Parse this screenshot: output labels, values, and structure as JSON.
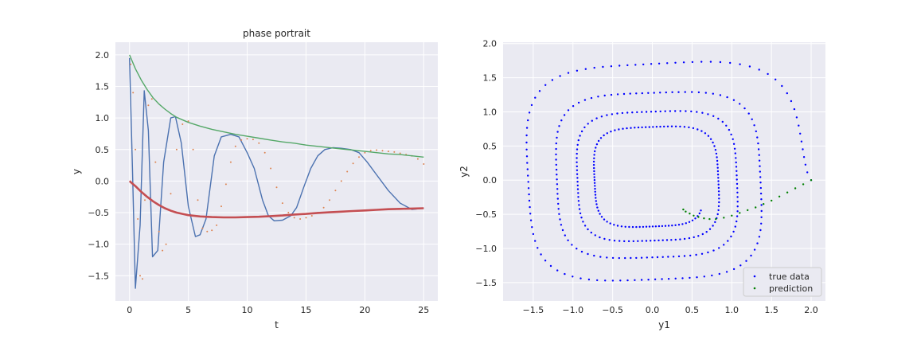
{
  "chart_data": [
    {
      "type": "line",
      "title": "phase portrait",
      "xlabel": "t",
      "ylabel": "y",
      "xlim": [
        -1.2,
        26.2
      ],
      "ylim": [
        -1.9,
        2.2
      ],
      "xticks": [
        0,
        5,
        10,
        15,
        20,
        25
      ],
      "yticks": [
        -1.5,
        -1.0,
        -0.5,
        0.0,
        0.5,
        1.0,
        1.5,
        2.0
      ],
      "grid": true,
      "series": [
        {
          "style": "line",
          "color": "#4c72b0",
          "x": [
            0,
            0.25,
            0.5,
            0.9,
            1.25,
            1.6,
            1.95,
            2.4,
            2.9,
            3.5,
            3.9,
            4.4,
            5.0,
            5.6,
            6.0,
            6.5,
            7.2,
            7.8,
            8.6,
            9.3,
            10.0,
            10.6,
            11.3,
            11.8,
            12.3,
            13.0,
            13.7,
            14.2,
            14.8,
            15.4,
            16.0,
            16.6,
            17.3,
            18.0,
            18.8,
            19.5,
            20.2,
            21.0,
            22.0,
            23.0,
            24.0,
            25.0
          ],
          "y": [
            1.95,
            0.2,
            -1.7,
            -0.7,
            1.43,
            0.8,
            -1.2,
            -1.1,
            0.3,
            1.0,
            1.02,
            0.6,
            -0.4,
            -0.88,
            -0.85,
            -0.6,
            0.4,
            0.7,
            0.74,
            0.7,
            0.45,
            0.2,
            -0.3,
            -0.55,
            -0.63,
            -0.62,
            -0.55,
            -0.42,
            -0.1,
            0.2,
            0.4,
            0.5,
            0.53,
            0.52,
            0.5,
            0.45,
            0.3,
            0.1,
            -0.15,
            -0.35,
            -0.45,
            -0.43
          ]
        },
        {
          "style": "dots",
          "color": "#dd8452",
          "x": [
            0.1,
            0.3,
            0.5,
            0.7,
            0.9,
            1.1,
            1.3,
            1.6,
            1.9,
            2.2,
            2.5,
            2.8,
            3.1,
            3.5,
            4.0,
            4.5,
            5.0,
            5.4,
            5.8,
            6.2,
            6.6,
            7.0,
            7.4,
            7.8,
            8.2,
            8.6,
            9.0,
            9.5,
            10.0,
            10.5,
            11.0,
            11.5,
            12.0,
            12.5,
            13.0,
            13.5,
            14.0,
            14.5,
            15.0,
            15.5,
            16.0,
            16.5,
            17.0,
            17.5,
            18.0,
            18.5,
            19.0,
            19.5,
            20.0,
            20.5,
            21.0,
            21.5,
            22.0,
            22.5,
            23.0,
            23.5,
            24.0,
            24.5,
            25.0
          ],
          "y": [
            1.85,
            1.4,
            0.5,
            -0.6,
            -1.5,
            -1.55,
            -0.3,
            1.2,
            1.3,
            0.3,
            -0.8,
            -1.1,
            -1.0,
            -0.2,
            0.5,
            0.9,
            0.95,
            0.5,
            -0.3,
            -0.75,
            -0.8,
            -0.78,
            -0.7,
            -0.4,
            -0.05,
            0.3,
            0.55,
            0.65,
            0.67,
            0.66,
            0.6,
            0.45,
            0.2,
            -0.1,
            -0.35,
            -0.5,
            -0.58,
            -0.6,
            -0.58,
            -0.55,
            -0.5,
            -0.42,
            -0.3,
            -0.15,
            0.0,
            0.15,
            0.28,
            0.38,
            0.45,
            0.48,
            0.49,
            0.48,
            0.47,
            0.46,
            0.44,
            0.42,
            0.4,
            0.35,
            0.27
          ]
        },
        {
          "style": "line",
          "color": "#55a868",
          "x": [
            0,
            0.5,
            1,
            1.5,
            2,
            2.5,
            3,
            3.5,
            4,
            5,
            6,
            7,
            8,
            9,
            10,
            11,
            12,
            13,
            14,
            15,
            16,
            17,
            18,
            19,
            20,
            21,
            22,
            23,
            24,
            25
          ],
          "y": [
            2.0,
            1.78,
            1.6,
            1.45,
            1.32,
            1.22,
            1.14,
            1.07,
            1.01,
            0.93,
            0.87,
            0.82,
            0.78,
            0.74,
            0.71,
            0.68,
            0.65,
            0.62,
            0.6,
            0.57,
            0.55,
            0.53,
            0.51,
            0.49,
            0.47,
            0.45,
            0.43,
            0.42,
            0.4,
            0.38
          ]
        },
        {
          "style": "thick",
          "color": "#c44e52",
          "x": [
            0,
            0.5,
            1,
            1.5,
            2,
            2.5,
            3,
            3.5,
            4,
            4.5,
            5,
            6,
            7,
            8,
            9,
            10,
            11,
            12,
            13,
            14,
            15,
            16,
            17,
            18,
            19,
            20,
            21,
            22,
            23,
            24,
            25
          ],
          "y": [
            0.0,
            -0.08,
            -0.17,
            -0.25,
            -0.32,
            -0.38,
            -0.43,
            -0.47,
            -0.5,
            -0.52,
            -0.54,
            -0.56,
            -0.57,
            -0.575,
            -0.575,
            -0.57,
            -0.565,
            -0.555,
            -0.545,
            -0.53,
            -0.52,
            -0.505,
            -0.495,
            -0.485,
            -0.475,
            -0.465,
            -0.455,
            -0.445,
            -0.44,
            -0.435,
            -0.43
          ]
        }
      ]
    },
    {
      "type": "scatter",
      "xlabel": "y1",
      "ylabel": "y2",
      "xlim": [
        -1.88,
        2.18
      ],
      "ylim": [
        -1.77,
        2.02
      ],
      "xticks": [
        -1.5,
        -1.0,
        -0.5,
        0.0,
        0.5,
        1.0,
        1.5,
        2.0
      ],
      "yticks": [
        -1.5,
        -1.0,
        -0.5,
        0.0,
        0.5,
        1.0,
        1.5,
        2.0
      ],
      "grid": true,
      "legend": {
        "placement": "lower-right"
      },
      "series": [
        {
          "name": "true data",
          "color": "#0000ff",
          "spiral": {
            "r_start": 2.0,
            "r_end": 0.65,
            "start_angle_deg": 0,
            "turns": 3.9,
            "power": 4,
            "count": 420
          }
        },
        {
          "name": "prediction",
          "color": "#008000",
          "x": [
            2.0,
            1.9,
            1.8,
            1.7,
            1.6,
            1.5,
            1.4,
            1.3,
            1.2,
            1.1,
            1.0,
            0.9,
            0.8,
            0.72,
            0.65,
            0.58,
            0.52,
            0.47,
            0.42,
            0.39
          ],
          "y": [
            0.0,
            -0.06,
            -0.12,
            -0.18,
            -0.24,
            -0.3,
            -0.35,
            -0.4,
            -0.44,
            -0.48,
            -0.52,
            -0.55,
            -0.57,
            -0.57,
            -0.56,
            -0.54,
            -0.52,
            -0.49,
            -0.46,
            -0.43
          ]
        }
      ]
    }
  ]
}
